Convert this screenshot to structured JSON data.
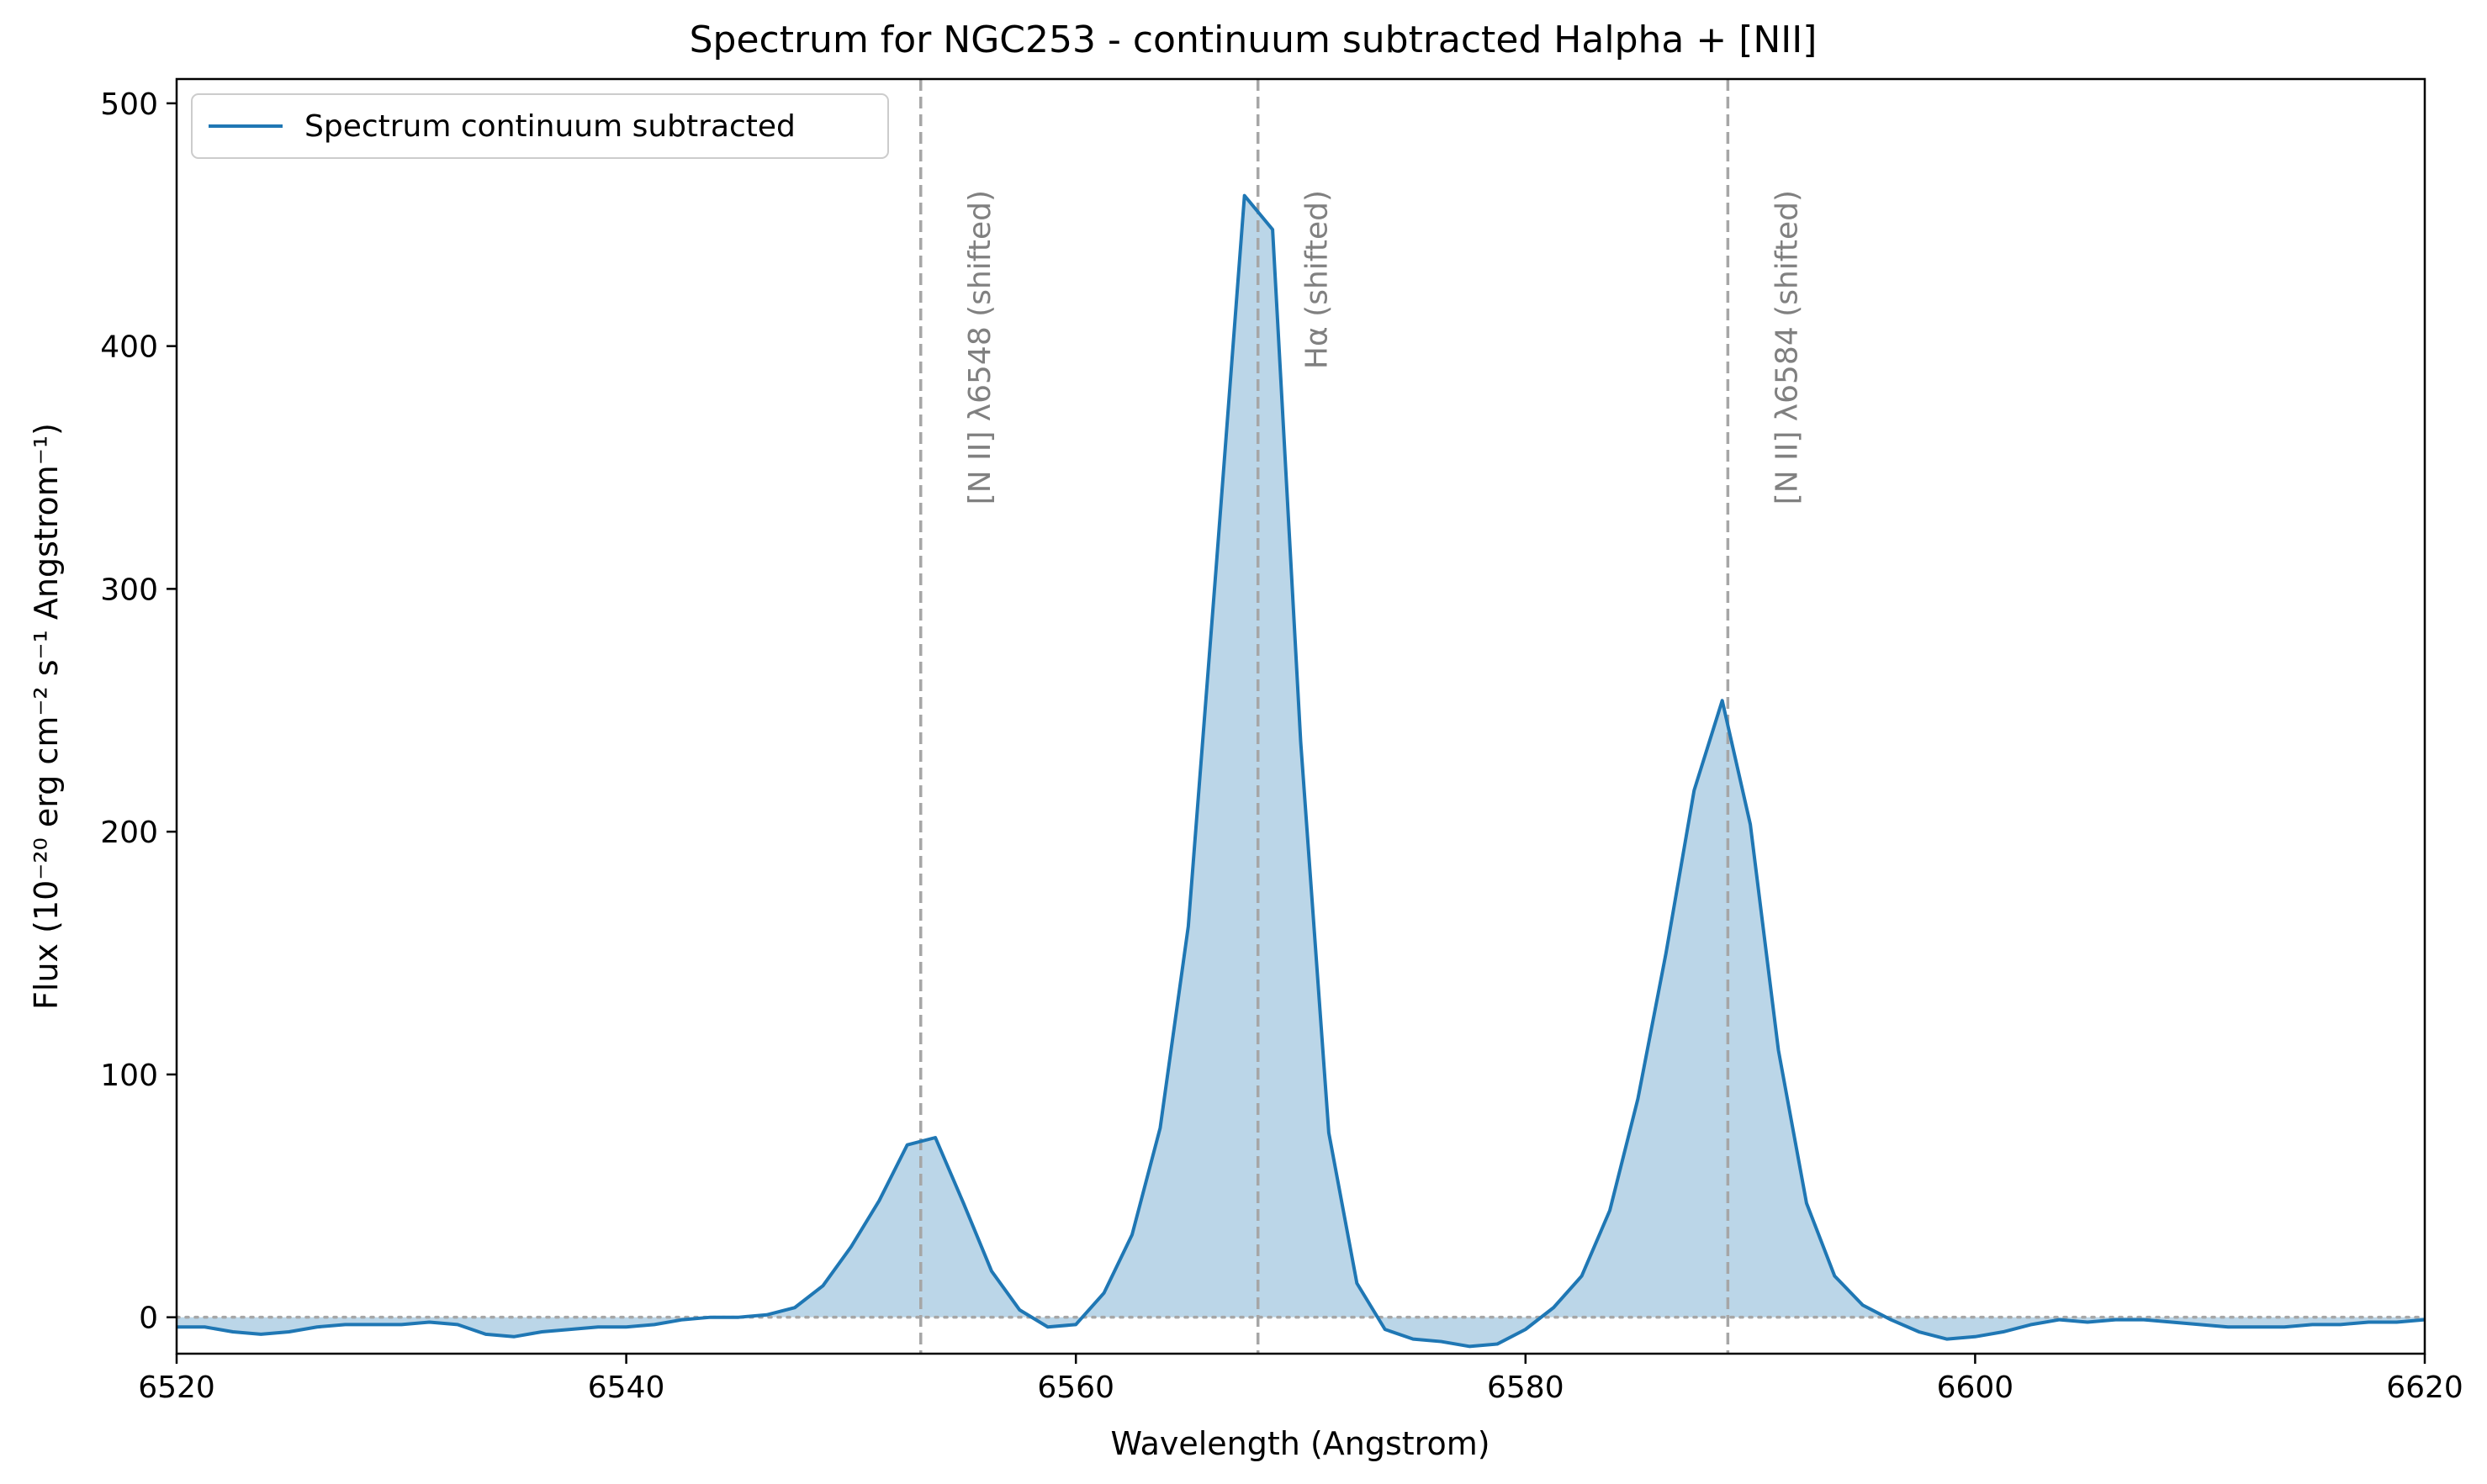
{
  "chart_data": {
    "type": "line",
    "title": "Spectrum for NGC253 - continuum subtracted Halpha + [NII]",
    "xlabel": "Wavelength (Angstrom)",
    "ylabel": "Flux (10⁻²⁰ erg cm⁻² s⁻¹ Angstrom⁻¹)",
    "xlim": [
      6520,
      6620
    ],
    "ylim": [
      -15,
      510
    ],
    "xticks": [
      6520,
      6540,
      6560,
      6580,
      6600,
      6620
    ],
    "yticks": [
      0,
      100,
      200,
      300,
      400,
      500
    ],
    "legend": {
      "placement": "upper-left"
    },
    "grid": false,
    "series": [
      {
        "name": "Spectrum continuum subtracted",
        "color": "#1f77b4",
        "fill_color": "#1f77b4",
        "x": [
          6520,
          6521.25,
          6522.5,
          6523.75,
          6525,
          6526.25,
          6527.5,
          6528.75,
          6530,
          6531.25,
          6532.5,
          6533.75,
          6535,
          6536.25,
          6537.5,
          6538.75,
          6540,
          6541.25,
          6542.5,
          6543.75,
          6545,
          6546.25,
          6547.5,
          6548.75,
          6550,
          6551.25,
          6552.5,
          6553.75,
          6555,
          6556.25,
          6557.5,
          6558.75,
          6560,
          6561.25,
          6562.5,
          6563.75,
          6565,
          6566.25,
          6567.5,
          6568.75,
          6570,
          6571.25,
          6572.5,
          6573.75,
          6575,
          6576.25,
          6577.5,
          6578.75,
          6580,
          6581.25,
          6582.5,
          6583.75,
          6585,
          6586.25,
          6587.5,
          6588.75,
          6590,
          6591.25,
          6592.5,
          6593.75,
          6595,
          6596.25,
          6597.5,
          6598.75,
          6600,
          6601.25,
          6602.5,
          6603.75,
          6605,
          6606.25,
          6607.5,
          6608.75,
          6610,
          6611.25,
          6612.5,
          6613.75,
          6615,
          6616.25,
          6617.5,
          6618.75,
          6620
        ],
        "y": [
          -4,
          -4,
          -6,
          -7,
          -6,
          -4,
          -3,
          -3,
          -3,
          -2,
          -3,
          -7,
          -8,
          -6,
          -5,
          -4,
          -4,
          -3,
          -1,
          0,
          0,
          1,
          4,
          13,
          29,
          48,
          71,
          74,
          47,
          19,
          3,
          -4,
          -3,
          10,
          34,
          78,
          161,
          310,
          462,
          448,
          237,
          76,
          14,
          -5,
          -9,
          -10,
          -12,
          -11,
          -5,
          4,
          17,
          44,
          90,
          150,
          217,
          254,
          203,
          110,
          47,
          17,
          5,
          -1,
          -6,
          -9,
          -8,
          -6,
          -3,
          -1,
          -2,
          -1,
          -1,
          -2,
          -3,
          -4,
          -4,
          -4,
          -3,
          -3,
          -2,
          -2,
          -1
        ]
      }
    ],
    "reference_lines": [
      {
        "x": 6553.1,
        "label": "[N II] λ6548 (shifted)",
        "style": "dashed",
        "color": "#a6a6a6"
      },
      {
        "x": 6568.1,
        "label": "Hα (shifted)",
        "style": "dashed",
        "color": "#a6a6a6"
      },
      {
        "x": 6589.0,
        "label": "[N II] λ6584 (shifted)",
        "style": "dashed",
        "color": "#a6a6a6"
      }
    ],
    "zero_line": {
      "y": 0,
      "style": "dotted",
      "color": "#a6a6a6"
    }
  }
}
